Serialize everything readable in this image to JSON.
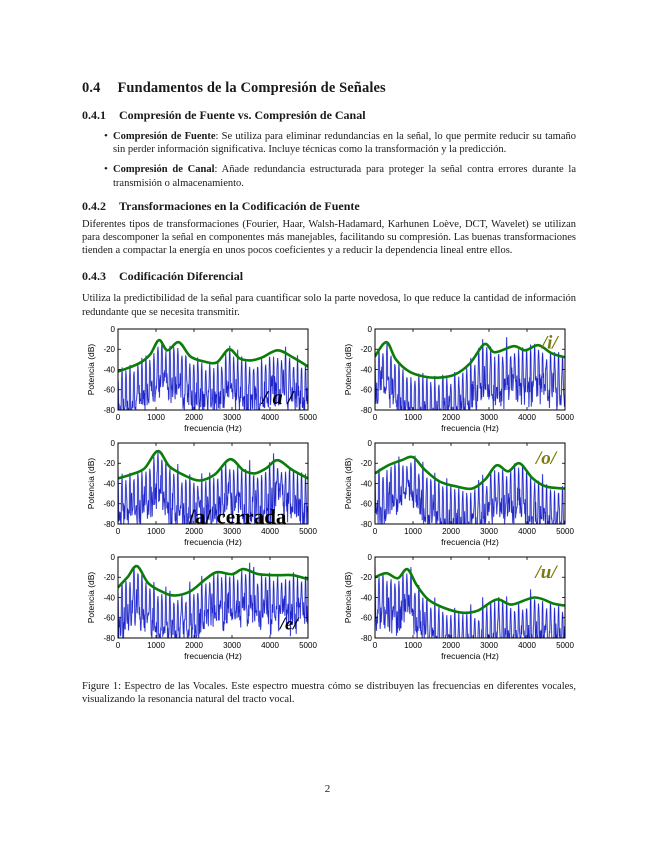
{
  "doc": {
    "h1": {
      "num": "0.4",
      "title": "Fundamentos de la Compresión de Señales"
    },
    "h2a": {
      "num": "0.4.1",
      "title": "Compresión de Fuente vs. Compresión de Canal"
    },
    "bullets": [
      {
        "term": "Compresión de Fuente",
        "rest": ": Se utiliza para eliminar redundancias en la señal, lo que permite reducir su tamaño sin perder información significativa. Incluye técnicas como la transformación y la predicción."
      },
      {
        "term": "Compresión de Canal",
        "rest": ": Añade redundancia estructurada para proteger la señal contra errores durante la transmisión o almacenamiento."
      }
    ],
    "h2b": {
      "num": "0.4.2",
      "title": "Transformaciones en la Codificación de Fuente"
    },
    "p1": "Diferentes tipos de transformaciones (Fourier, Haar, Walsh-Hadamard, Karhunen Loève, DCT, Wavelet) se utilizan para descomponer la señal en componentes más manejables, facilitando su compresión. Las buenas transformaciones tienden a compactar la energía en unos pocos coeficientes y a reducir la dependencia lineal entre ellos.",
    "h2c": {
      "num": "0.4.3",
      "title": "Codificación Diferencial"
    },
    "p2": "Utiliza la predictibilidad de la señal para cuantificar solo la parte novedosa, lo que reduce la cantidad de información redundante que se necesita transmitir.",
    "caption": "Figure 1: Espectro de las Vocales. Este espectro muestra cómo se distribuyen las frecuencias en diferentes vocales, visualizando la resonancia natural del tracto vocal.",
    "page_number": "2"
  },
  "colors": {
    "spectrum_blue": "#1f25c8",
    "spectrum_halo": "#a0a6ea",
    "envelope_green": "#0a7d0a",
    "label_olive": "#7a7a10",
    "label_black": "#000000"
  },
  "chart_data": [
    {
      "type": "line",
      "xlabel": "frecuencia (Hz)",
      "ylabel": "Potencia (dB)",
      "xlim": [
        0,
        5000
      ],
      "ylim": [
        -80,
        0
      ],
      "xticks": [
        0,
        1000,
        2000,
        3000,
        4000,
        5000
      ],
      "yticks": [
        0,
        -20,
        -40,
        -60,
        -80
      ],
      "label": {
        "text": "/ a /",
        "color": "#000000",
        "x": 0.84,
        "y": 0.84,
        "size": 20,
        "italic": true
      },
      "series": [
        {
          "name": "espectro",
          "type": "noisy-spectrum",
          "color": "#1f25c8",
          "halo": "#a0a6ea",
          "seed": 101,
          "pitch_hz": 105
        },
        {
          "name": "envolvente-formantes",
          "type": "smooth",
          "color": "#0a7d0a",
          "width": 2.6,
          "points": [
            [
              0,
              -42
            ],
            [
              300,
              -38
            ],
            [
              600,
              -33
            ],
            [
              850,
              -25
            ],
            [
              1080,
              -11
            ],
            [
              1300,
              -21
            ],
            [
              1600,
              -13
            ],
            [
              1900,
              -27
            ],
            [
              2250,
              -32
            ],
            [
              2600,
              -33
            ],
            [
              2920,
              -20
            ],
            [
              3200,
              -29
            ],
            [
              3500,
              -31
            ],
            [
              3800,
              -28
            ],
            [
              4200,
              -21
            ],
            [
              4600,
              -28
            ],
            [
              5000,
              -37
            ]
          ]
        }
      ]
    },
    {
      "type": "line",
      "xlabel": "frecuencia (Hz)",
      "ylabel": "Potencia (dB)",
      "xlim": [
        0,
        5000
      ],
      "ylim": [
        -80,
        0
      ],
      "xticks": [
        0,
        1000,
        2000,
        3000,
        4000,
        5000
      ],
      "yticks": [
        0,
        -20,
        -40,
        -60,
        -80
      ],
      "label": {
        "text": "/i/",
        "color": "#7a7a10",
        "x": 0.92,
        "y": 0.16,
        "size": 19,
        "italic": true
      },
      "series": [
        {
          "name": "espectro",
          "type": "noisy-spectrum",
          "color": "#1f25c8",
          "halo": "#a0a6ea",
          "seed": 202,
          "pitch_hz": 105
        },
        {
          "name": "envolvente-formantes",
          "type": "smooth",
          "color": "#0a7d0a",
          "width": 2.6,
          "points": [
            [
              0,
              -27
            ],
            [
              300,
              -13
            ],
            [
              550,
              -30
            ],
            [
              900,
              -42
            ],
            [
              1300,
              -47
            ],
            [
              1700,
              -48
            ],
            [
              2100,
              -45
            ],
            [
              2500,
              -34
            ],
            [
              2880,
              -15
            ],
            [
              3150,
              -23
            ],
            [
              3650,
              -17
            ],
            [
              3950,
              -21
            ],
            [
              4300,
              -16
            ],
            [
              4650,
              -24
            ],
            [
              5000,
              -28
            ]
          ]
        }
      ]
    },
    {
      "type": "line",
      "xlabel": "frecuencia (Hz)",
      "ylabel": "Potencia (dB)",
      "xlim": [
        0,
        5000
      ],
      "ylim": [
        -80,
        0
      ],
      "xticks": [
        0,
        1000,
        2000,
        3000,
        4000,
        5000
      ],
      "yticks": [
        0,
        -20,
        -40,
        -60,
        -80
      ],
      "label": {
        "text": "/a/ cerrada",
        "color": "#000000",
        "x": 0.63,
        "y": 0.9,
        "size": 21,
        "italic": false
      },
      "series": [
        {
          "name": "espectro",
          "type": "noisy-spectrum",
          "color": "#1f25c8",
          "halo": "#a0a6ea",
          "seed": 303,
          "pitch_hz": 105
        },
        {
          "name": "envolvente-formantes",
          "type": "smooth",
          "color": "#0a7d0a",
          "width": 2.6,
          "points": [
            [
              0,
              -35
            ],
            [
              350,
              -31
            ],
            [
              700,
              -25
            ],
            [
              1050,
              -8
            ],
            [
              1350,
              -23
            ],
            [
              1750,
              -32
            ],
            [
              2150,
              -37
            ],
            [
              2550,
              -31
            ],
            [
              2950,
              -16
            ],
            [
              3300,
              -27
            ],
            [
              3600,
              -30
            ],
            [
              3900,
              -25
            ],
            [
              4200,
              -17
            ],
            [
              4600,
              -27
            ],
            [
              5000,
              -35
            ]
          ]
        }
      ]
    },
    {
      "type": "line",
      "xlabel": "frecuencia (Hz)",
      "ylabel": "Potencia (dB)",
      "xlim": [
        0,
        5000
      ],
      "ylim": [
        -80,
        0
      ],
      "xticks": [
        0,
        1000,
        2000,
        3000,
        4000,
        5000
      ],
      "yticks": [
        0,
        -20,
        -40,
        -60,
        -80
      ],
      "label": {
        "text": "/o/",
        "color": "#7a7a10",
        "x": 0.9,
        "y": 0.18,
        "size": 19,
        "italic": true
      },
      "series": [
        {
          "name": "espectro",
          "type": "noisy-spectrum",
          "color": "#1f25c8",
          "halo": "#a0a6ea",
          "seed": 404,
          "pitch_hz": 105
        },
        {
          "name": "envolvente-formantes",
          "type": "smooth",
          "color": "#0a7d0a",
          "width": 2.6,
          "points": [
            [
              0,
              -30
            ],
            [
              350,
              -22
            ],
            [
              700,
              -17
            ],
            [
              1000,
              -14
            ],
            [
              1300,
              -26
            ],
            [
              1700,
              -38
            ],
            [
              2150,
              -43
            ],
            [
              2550,
              -45
            ],
            [
              2900,
              -36
            ],
            [
              3200,
              -22
            ],
            [
              3500,
              -28
            ],
            [
              3800,
              -20
            ],
            [
              4150,
              -35
            ],
            [
              4500,
              -43
            ],
            [
              5000,
              -45
            ]
          ]
        }
      ]
    },
    {
      "type": "line",
      "xlabel": "frecuencia (Hz)",
      "ylabel": "Potencia (dB)",
      "xlim": [
        0,
        5000
      ],
      "ylim": [
        -80,
        0
      ],
      "xticks": [
        0,
        1000,
        2000,
        3000,
        4000,
        5000
      ],
      "yticks": [
        0,
        -20,
        -40,
        -60,
        -80
      ],
      "label": {
        "text": "/e/",
        "color": "#000000",
        "x": 0.9,
        "y": 0.82,
        "size": 18,
        "italic": true
      },
      "series": [
        {
          "name": "espectro",
          "type": "noisy-spectrum",
          "color": "#1f25c8",
          "halo": "#a0a6ea",
          "seed": 505,
          "pitch_hz": 105
        },
        {
          "name": "envolvente-formantes",
          "type": "smooth",
          "color": "#0a7d0a",
          "width": 2.6,
          "points": [
            [
              0,
              -30
            ],
            [
              250,
              -20
            ],
            [
              500,
              -9
            ],
            [
              800,
              -26
            ],
            [
              1200,
              -35
            ],
            [
              1500,
              -38
            ],
            [
              1900,
              -34
            ],
            [
              2300,
              -22
            ],
            [
              2600,
              -15
            ],
            [
              3000,
              -17
            ],
            [
              3300,
              -12
            ],
            [
              3700,
              -17
            ],
            [
              4200,
              -18
            ],
            [
              4600,
              -18
            ],
            [
              5000,
              -22
            ]
          ]
        }
      ]
    },
    {
      "type": "line",
      "xlabel": "frecuencia (Hz)",
      "ylabel": "Potencia (dB)",
      "xlim": [
        0,
        5000
      ],
      "ylim": [
        -80,
        0
      ],
      "xticks": [
        0,
        1000,
        2000,
        3000,
        4000,
        5000
      ],
      "yticks": [
        0,
        -20,
        -40,
        -60,
        -80
      ],
      "label": {
        "text": "/u/",
        "color": "#7a7a10",
        "x": 0.9,
        "y": 0.18,
        "size": 19,
        "italic": true
      },
      "series": [
        {
          "name": "espectro",
          "type": "noisy-spectrum",
          "color": "#1f25c8",
          "halo": "#a0a6ea",
          "seed": 606,
          "pitch_hz": 105
        },
        {
          "name": "envolvente-formantes",
          "type": "smooth",
          "color": "#0a7d0a",
          "width": 2.6,
          "points": [
            [
              0,
              -20
            ],
            [
              300,
              -16
            ],
            [
              600,
              -21
            ],
            [
              850,
              -12
            ],
            [
              1100,
              -28
            ],
            [
              1400,
              -42
            ],
            [
              1800,
              -50
            ],
            [
              2300,
              -55
            ],
            [
              2700,
              -53
            ],
            [
              3200,
              -42
            ],
            [
              3600,
              -47
            ],
            [
              4200,
              -40
            ],
            [
              4700,
              -46
            ],
            [
              5000,
              -48
            ]
          ]
        }
      ]
    }
  ]
}
